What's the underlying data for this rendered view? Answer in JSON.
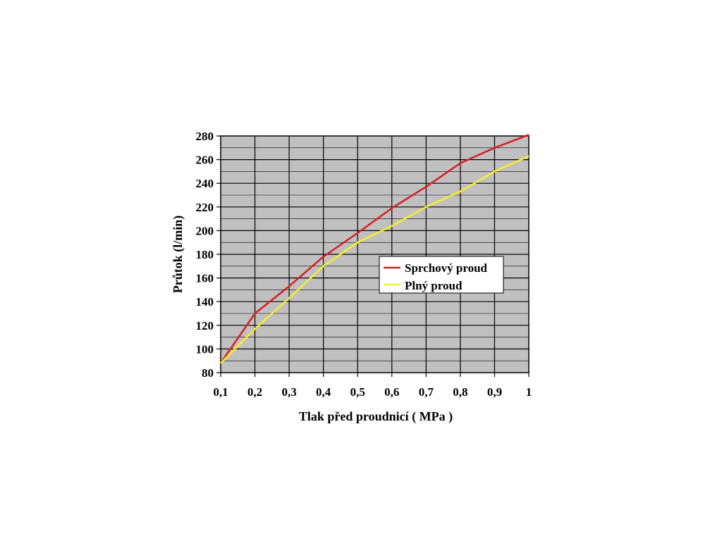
{
  "chart_data": {
    "type": "line",
    "xlabel": "Tlak před proudnicí  ( MPa )",
    "ylabel": "Průtok (l/min)",
    "x": [
      0.1,
      0.2,
      0.3,
      0.4,
      0.5,
      0.6,
      0.7,
      0.8,
      0.9,
      1.0
    ],
    "x_tick_labels": [
      "0,1",
      "0,2",
      "0,3",
      "0,4",
      "0,5",
      "0,6",
      "0,7",
      "0,8",
      "0,9",
      "1"
    ],
    "y_tick_labels": [
      "80",
      "100",
      "120",
      "140",
      "160",
      "180",
      "200",
      "220",
      "240",
      "260",
      "280"
    ],
    "xlim": [
      0.1,
      1.0
    ],
    "ylim": [
      80,
      280
    ],
    "grid": true,
    "plot_background": "#c0c0c0",
    "legend_position": "center-right",
    "series": [
      {
        "name": "Sprchový proud",
        "color": "#d42020",
        "values": [
          88,
          130,
          153,
          178,
          198,
          219,
          237,
          257,
          270,
          281
        ]
      },
      {
        "name": "Plný proud",
        "color": "#f5ef2a",
        "values": [
          88,
          117,
          143,
          170,
          190,
          204,
          220,
          233,
          250,
          263
        ]
      }
    ]
  }
}
